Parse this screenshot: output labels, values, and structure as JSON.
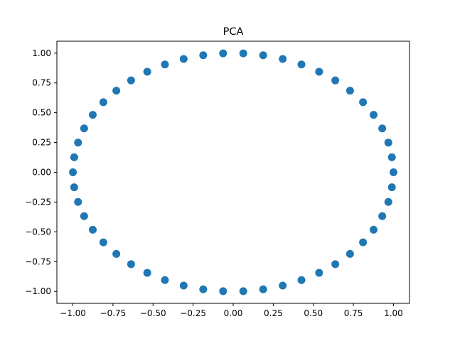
{
  "chart_data": {
    "type": "scatter",
    "title": "PCA",
    "xlabel": "",
    "ylabel": "",
    "xlim": [
      -1.1,
      1.1
    ],
    "ylim": [
      -1.1,
      1.1
    ],
    "grid": false,
    "marker_color": "#1f77b4",
    "x_ticks": [
      {
        "value": -1.0,
        "label": "−1.00"
      },
      {
        "value": -0.75,
        "label": "−0.75"
      },
      {
        "value": -0.5,
        "label": "−0.50"
      },
      {
        "value": -0.25,
        "label": "−0.25"
      },
      {
        "value": 0.0,
        "label": "0.00"
      },
      {
        "value": 0.25,
        "label": "0.25"
      },
      {
        "value": 0.5,
        "label": "0.50"
      },
      {
        "value": 0.75,
        "label": "0.75"
      },
      {
        "value": 1.0,
        "label": "1.00"
      }
    ],
    "y_ticks": [
      {
        "value": -1.0,
        "label": "−1.00"
      },
      {
        "value": -0.75,
        "label": "−0.75"
      },
      {
        "value": -0.5,
        "label": "−0.50"
      },
      {
        "value": -0.25,
        "label": "−0.25"
      },
      {
        "value": 0.0,
        "label": "0.00"
      },
      {
        "value": 0.25,
        "label": "0.25"
      },
      {
        "value": 0.5,
        "label": "0.50"
      },
      {
        "value": 0.75,
        "label": "0.75"
      },
      {
        "value": 1.0,
        "label": "1.00"
      }
    ],
    "points": [
      {
        "x": 1.0,
        "y": 0.0
      },
      {
        "x": 0.99,
        "y": 0.126
      },
      {
        "x": 0.968,
        "y": 0.249
      },
      {
        "x": 0.93,
        "y": 0.368
      },
      {
        "x": 0.876,
        "y": 0.482
      },
      {
        "x": 0.81,
        "y": 0.588
      },
      {
        "x": 0.729,
        "y": 0.685
      },
      {
        "x": 0.637,
        "y": 0.771
      },
      {
        "x": 0.536,
        "y": 0.844
      },
      {
        "x": 0.426,
        "y": 0.905
      },
      {
        "x": 0.309,
        "y": 0.951
      },
      {
        "x": 0.187,
        "y": 0.982
      },
      {
        "x": 0.063,
        "y": 0.998
      },
      {
        "x": -0.063,
        "y": 0.998
      },
      {
        "x": -0.187,
        "y": 0.982
      },
      {
        "x": -0.309,
        "y": 0.951
      },
      {
        "x": -0.426,
        "y": 0.905
      },
      {
        "x": -0.536,
        "y": 0.844
      },
      {
        "x": -0.637,
        "y": 0.771
      },
      {
        "x": -0.729,
        "y": 0.685
      },
      {
        "x": -0.81,
        "y": 0.588
      },
      {
        "x": -0.876,
        "y": 0.482
      },
      {
        "x": -0.93,
        "y": 0.368
      },
      {
        "x": -0.968,
        "y": 0.249
      },
      {
        "x": -0.992,
        "y": 0.126
      },
      {
        "x": -1.0,
        "y": 0.0
      },
      {
        "x": -0.992,
        "y": -0.126
      },
      {
        "x": -0.968,
        "y": -0.249
      },
      {
        "x": -0.93,
        "y": -0.368
      },
      {
        "x": -0.876,
        "y": -0.482
      },
      {
        "x": -0.81,
        "y": -0.588
      },
      {
        "x": -0.729,
        "y": -0.685
      },
      {
        "x": -0.637,
        "y": -0.771
      },
      {
        "x": -0.536,
        "y": -0.844
      },
      {
        "x": -0.426,
        "y": -0.905
      },
      {
        "x": -0.309,
        "y": -0.951
      },
      {
        "x": -0.187,
        "y": -0.982
      },
      {
        "x": -0.063,
        "y": -0.998
      },
      {
        "x": 0.063,
        "y": -0.998
      },
      {
        "x": 0.187,
        "y": -0.982
      },
      {
        "x": 0.309,
        "y": -0.951
      },
      {
        "x": 0.426,
        "y": -0.905
      },
      {
        "x": 0.536,
        "y": -0.844
      },
      {
        "x": 0.637,
        "y": -0.771
      },
      {
        "x": 0.729,
        "y": -0.685
      },
      {
        "x": 0.81,
        "y": -0.588
      },
      {
        "x": 0.876,
        "y": -0.482
      },
      {
        "x": 0.93,
        "y": -0.368
      },
      {
        "x": 0.968,
        "y": -0.249
      },
      {
        "x": 0.99,
        "y": -0.126
      }
    ]
  }
}
